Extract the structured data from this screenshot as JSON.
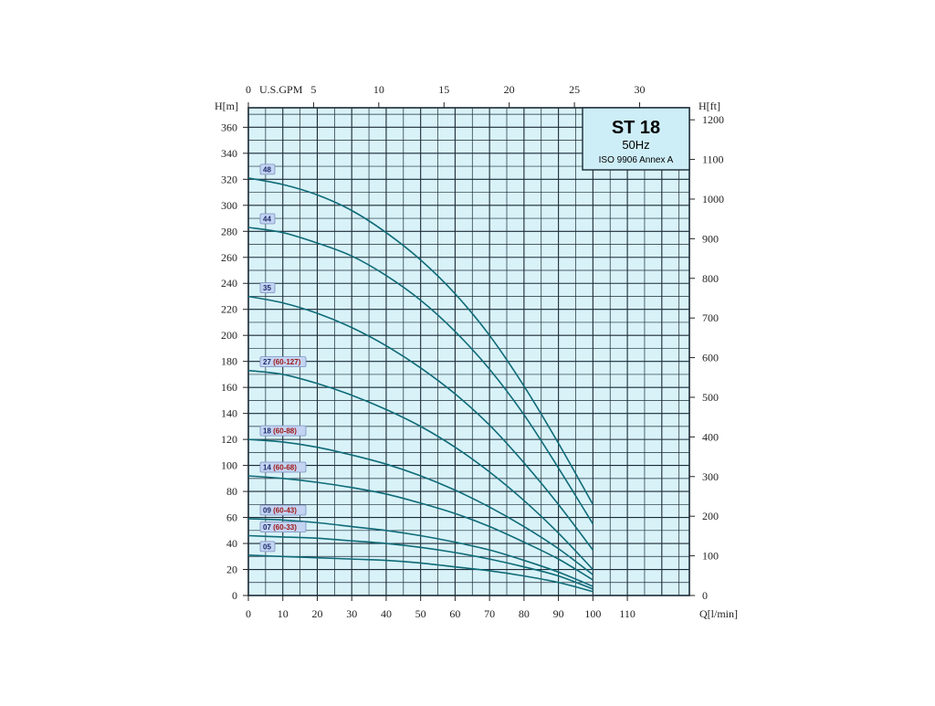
{
  "chart_data": {
    "type": "line",
    "title": "ST 18",
    "subtitle": "50Hz",
    "standard": "ISO 9906 Annex A",
    "xlabel": "Q[l/min]",
    "ylabel_left": "H[m]",
    "ylabel_right": "H[ft]",
    "top_axis_label": "U.S.GPM",
    "xlim": [
      0,
      128
    ],
    "ylim": [
      0,
      375
    ],
    "x_ticks": [
      0,
      10,
      20,
      30,
      40,
      50,
      60,
      70,
      80,
      90,
      100,
      110
    ],
    "y_ticks": [
      0,
      20,
      40,
      60,
      80,
      100,
      120,
      140,
      160,
      180,
      200,
      220,
      240,
      260,
      280,
      300,
      320,
      340,
      360
    ],
    "top_ticks": [
      0,
      5,
      10,
      15,
      20,
      25,
      30
    ],
    "right_ticks": [
      0,
      100,
      200,
      300,
      400,
      500,
      600,
      700,
      800,
      900,
      1000,
      1100,
      1200
    ],
    "grid": true,
    "x": [
      0,
      10,
      20,
      30,
      40,
      50,
      60,
      70,
      80,
      90,
      100
    ],
    "series": [
      {
        "model": "48",
        "range": "",
        "values": [
          321,
          316,
          308,
          296,
          279,
          258,
          232,
          200,
          161,
          117,
          70
        ]
      },
      {
        "model": "44",
        "range": "",
        "values": [
          283,
          279,
          271,
          261,
          246,
          227,
          203,
          174,
          139,
          98,
          55
        ]
      },
      {
        "model": "35",
        "range": "",
        "values": [
          230,
          225,
          217,
          206,
          192,
          175,
          155,
          131,
          102,
          70,
          35
        ]
      },
      {
        "model": "27",
        "range": "(60-127)",
        "values": [
          173,
          170,
          163,
          154,
          143,
          130,
          114,
          95,
          73,
          48,
          20
        ]
      },
      {
        "model": "18",
        "range": "(60-88)",
        "values": [
          120,
          118,
          114,
          108,
          101,
          92,
          81,
          68,
          53,
          36,
          16
        ]
      },
      {
        "model": "14",
        "range": "(60-68)",
        "values": [
          92,
          90,
          87,
          83,
          78,
          71,
          63,
          53,
          41,
          28,
          12
        ]
      },
      {
        "model": "09",
        "range": "(60-43)",
        "values": [
          59,
          58,
          56,
          53,
          50,
          46,
          41,
          35,
          27,
          18,
          7
        ]
      },
      {
        "model": "07",
        "range": "(60-33)",
        "values": [
          46,
          45,
          44,
          42,
          40,
          37,
          33,
          28,
          22,
          15,
          5
        ]
      },
      {
        "model": "05",
        "range": "",
        "values": [
          31,
          30,
          29,
          28,
          27,
          25,
          22,
          19,
          15,
          10,
          3
        ]
      }
    ],
    "colors": {
      "background": "#d8f2f8",
      "grid": "#1b2a36",
      "curve": "#0f6b78",
      "title_box": "#cdeef7",
      "label_box": "#c3d4f2",
      "label_model": "#1d2b6b",
      "label_range": "#a01818"
    }
  }
}
